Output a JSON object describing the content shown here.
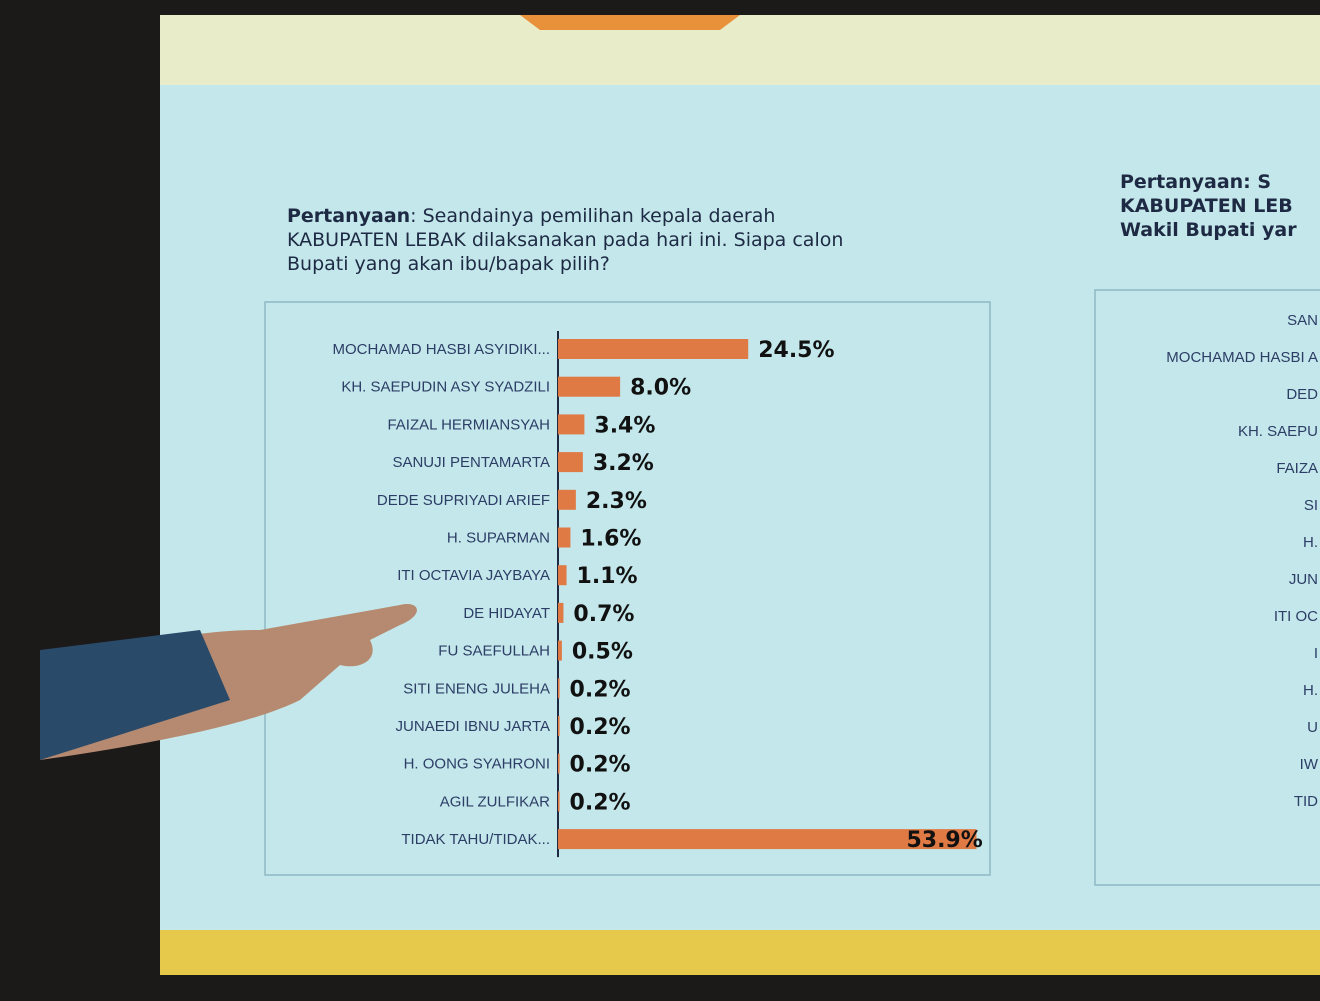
{
  "chart_data": {
    "type": "bar",
    "title": {
      "label": "Pertanyaan",
      "lines": [
        ": Seandainya pemilihan kepala daerah",
        "KABUPATEN LEBAK dilaksanakan pada hari ini. Siapa calon",
        "Bupati yang akan ibu/bapak pilih?"
      ]
    },
    "categories": [
      "MOCHAMAD HASBI ASYIDIKI...",
      "KH. SAEPUDIN ASY SYADZILI",
      "FAIZAL HERMIANSYAH",
      "SANUJI PENTAMARTA",
      "DEDE SUPRIYADI ARIEF",
      "H. SUPARMAN",
      "ITI OCTAVIA JAYBAYA",
      "DE HIDAYAT",
      "FU SAEFULLAH",
      "SITI ENENG JULEHA",
      "JUNAEDI IBNU JARTA",
      "H. OONG SYAHRONI",
      "AGIL ZULFIKAR",
      "TIDAK TAHU/TIDAK..."
    ],
    "values": [
      24.5,
      8.0,
      3.4,
      3.2,
      2.3,
      1.6,
      1.1,
      0.7,
      0.5,
      0.2,
      0.2,
      0.2,
      0.2,
      53.9
    ],
    "value_labels": [
      "24.5%",
      "8.0%",
      "3.4%",
      "3.2%",
      "2.3%",
      "1.6%",
      "1.1%",
      "0.7%",
      "0.5%",
      "0.2%",
      "0.2%",
      "0.2%",
      "0.2%",
      "53.9%"
    ],
    "color": "#e07a45",
    "xlim": [
      0,
      55
    ]
  },
  "side_panel": {
    "title_label": "Pertanyaan",
    "title_lines": [
      ": S",
      "KABUPATEN LEB",
      "Wakil Bupati yar"
    ],
    "labels": [
      "SAN",
      "MOCHAMAD HASBI A",
      "DED",
      "KH. SAEPU",
      "FAIZA",
      "SI",
      "H.",
      "JUN",
      "ITI OC",
      "I",
      "H.",
      "U",
      "IW",
      "TID"
    ]
  }
}
